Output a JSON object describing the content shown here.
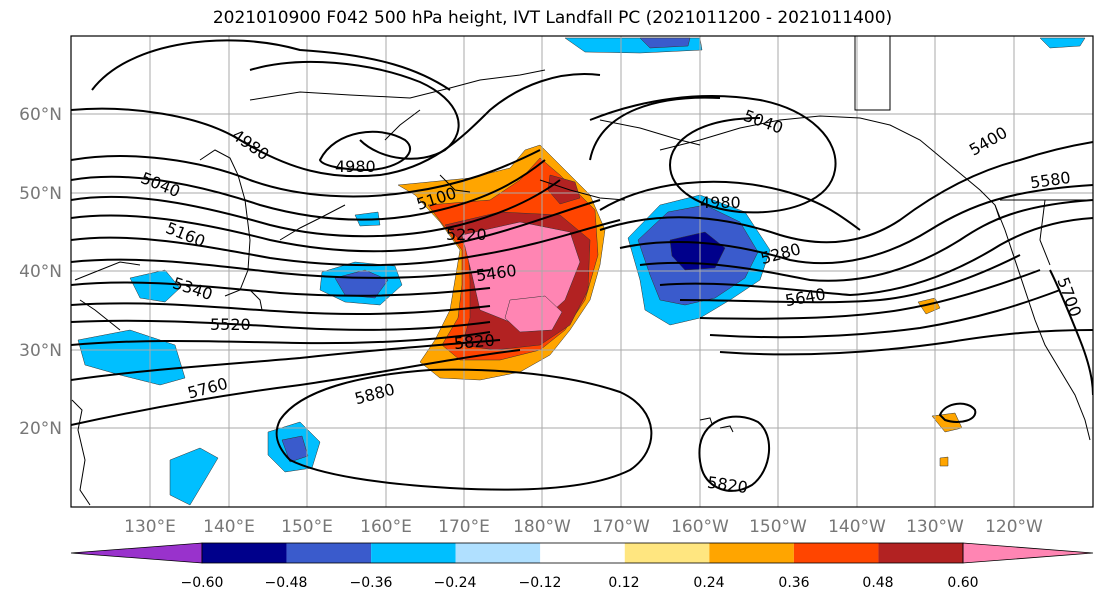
{
  "title": "2021010900 F042 500 hPa height, IVT Landfall PC (2021011200 - 2021011400)",
  "lon_ticks": [
    "130°E",
    "140°E",
    "150°E",
    "160°E",
    "170°E",
    "180°W",
    "170°W",
    "160°W",
    "150°W",
    "140°W",
    "130°W",
    "120°W"
  ],
  "lat_ticks": [
    "60°N",
    "50°N",
    "40°N",
    "30°N",
    "20°N"
  ],
  "colorbar": {
    "tick_labels": [
      "−0.60",
      "−0.48",
      "−0.36",
      "−0.24",
      "−0.12",
      "0.12",
      "0.24",
      "0.36",
      "0.48",
      "0.60"
    ],
    "colors": [
      "#9932CC",
      "#00008B",
      "#3A5BCC",
      "#00BFFF",
      "#B0E0FF",
      "#FFFFFF",
      "#FFE680",
      "#FFA500",
      "#FF4500",
      "#B22222",
      "#FF85B3"
    ]
  },
  "contour_labels": [
    "4980",
    "4980",
    "4980",
    "5040",
    "5040",
    "5100",
    "5160",
    "5220",
    "5280",
    "5340",
    "5400",
    "5460",
    "5520",
    "5580",
    "5640",
    "5700",
    "5760",
    "5820",
    "5820",
    "5880"
  ]
}
